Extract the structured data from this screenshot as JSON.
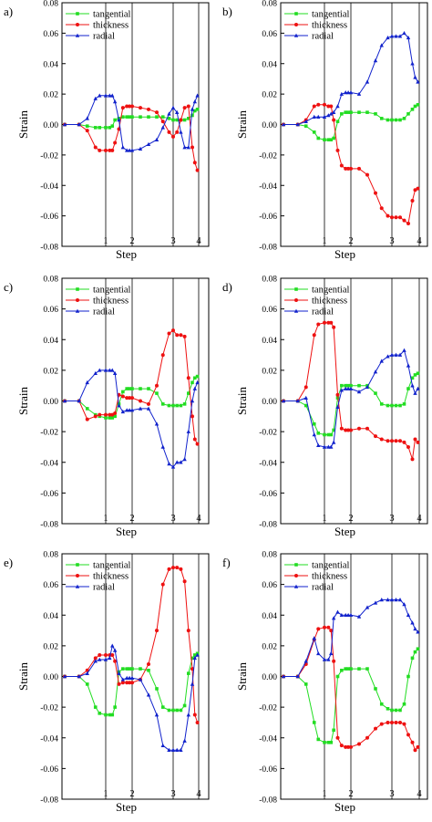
{
  "chart_data": [
    {
      "panel": "a)",
      "type": "line",
      "xlabel": "Step",
      "ylabel": "Strain",
      "ylim": [
        -0.08,
        0.08
      ],
      "yticks": [
        "0.08",
        "0.06",
        "0.04",
        "0.02",
        "0.00",
        "-0.02",
        "-0.04",
        "-0.06",
        "-0.08"
      ],
      "xticks": [
        "1",
        "2",
        "3",
        "4"
      ],
      "grid": "vertical lines at steps",
      "legend": "top-left",
      "x": [
        0,
        0.35,
        0.55,
        0.75,
        0.85,
        1,
        1.15,
        1.25,
        1.35,
        1.5,
        1.65,
        1.8,
        1.9,
        2,
        2.2,
        2.4,
        2.6,
        2.75,
        2.9,
        3,
        3.15,
        3.3,
        3.45,
        3.6,
        3.75,
        3.85,
        3.95
      ],
      "series": [
        {
          "name": "tangential",
          "color": "#22dd22",
          "marker": "square",
          "values": [
            0,
            0,
            -0.001,
            -0.002,
            -0.002,
            -0.002,
            -0.002,
            -0.001,
            0.003,
            0.004,
            0.005,
            0.005,
            0.005,
            0.005,
            0.005,
            0.005,
            0.005,
            0.005,
            0.004,
            0.003,
            0.003,
            0.003,
            0.003,
            0.004,
            0.006,
            0.009,
            0.01
          ]
        },
        {
          "name": "thickness",
          "color": "#ee1111",
          "marker": "circle",
          "values": [
            0,
            0,
            -0.004,
            -0.015,
            -0.017,
            -0.017,
            -0.017,
            -0.017,
            -0.012,
            -0.003,
            0.011,
            0.012,
            0.012,
            0.012,
            0.011,
            0.01,
            0.008,
            0.002,
            -0.005,
            -0.008,
            -0.005,
            0.003,
            0.011,
            0.012,
            -0.015,
            -0.025,
            -0.03
          ]
        },
        {
          "name": "radial",
          "color": "#1122cc",
          "marker": "triangle",
          "values": [
            0,
            0,
            0.004,
            0.017,
            0.019,
            0.019,
            0.019,
            0.019,
            0.015,
            0.003,
            -0.015,
            -0.017,
            -0.017,
            -0.017,
            -0.016,
            -0.013,
            -0.01,
            -0.002,
            0.007,
            0.011,
            0.008,
            -0.005,
            -0.015,
            -0.015,
            0.01,
            0.015,
            0.019
          ]
        }
      ]
    },
    {
      "panel": "b)",
      "type": "line",
      "xlabel": "Step",
      "ylabel": "Strain",
      "ylim": [
        -0.08,
        0.08
      ],
      "yticks": [
        "0.08",
        "0.06",
        "0.04",
        "0.02",
        "0.00",
        "-0.02",
        "-0.04",
        "-0.06",
        "-0.08"
      ],
      "xticks": [
        "1",
        "2",
        "3",
        "4"
      ],
      "grid": "vertical lines at steps",
      "legend": "top-left",
      "x": [
        0,
        0.35,
        0.55,
        0.75,
        0.85,
        1,
        1.15,
        1.25,
        1.35,
        1.5,
        1.65,
        1.8,
        1.9,
        2,
        2.2,
        2.4,
        2.6,
        2.75,
        2.9,
        3,
        3.15,
        3.3,
        3.45,
        3.6,
        3.75,
        3.85,
        3.95
      ],
      "series": [
        {
          "name": "tangential",
          "color": "#22dd22",
          "marker": "square",
          "values": [
            0,
            0,
            -0.001,
            -0.005,
            -0.009,
            -0.01,
            -0.01,
            -0.01,
            -0.009,
            0.002,
            0.007,
            0.008,
            0.008,
            0.008,
            0.008,
            0.008,
            0.007,
            0.004,
            0.003,
            0.003,
            0.003,
            0.003,
            0.004,
            0.007,
            0.01,
            0.012,
            0.013
          ]
        },
        {
          "name": "thickness",
          "color": "#ee1111",
          "marker": "circle",
          "values": [
            0,
            0,
            0.003,
            0.012,
            0.013,
            0.013,
            0.012,
            0.012,
            0.003,
            -0.017,
            -0.027,
            -0.029,
            -0.029,
            -0.029,
            -0.029,
            -0.033,
            -0.045,
            -0.055,
            -0.06,
            -0.061,
            -0.061,
            -0.061,
            -0.063,
            -0.065,
            -0.05,
            -0.043,
            -0.042
          ]
        },
        {
          "name": "radial",
          "color": "#1122cc",
          "marker": "triangle",
          "values": [
            0,
            0,
            0.002,
            0.005,
            0.005,
            0.005,
            0.006,
            0.007,
            0.008,
            0.012,
            0.02,
            0.021,
            0.021,
            0.021,
            0.02,
            0.028,
            0.042,
            0.052,
            0.057,
            0.058,
            0.058,
            0.058,
            0.06,
            0.057,
            0.04,
            0.031,
            0.028
          ]
        }
      ]
    },
    {
      "panel": "c)",
      "type": "line",
      "xlabel": "Step",
      "ylabel": "Strain",
      "ylim": [
        -0.08,
        0.08
      ],
      "yticks": [
        "0.08",
        "0.06",
        "0.04",
        "0.02",
        "0.00",
        "-0.02",
        "-0.04",
        "-0.06",
        "-0.08"
      ],
      "xticks": [
        "1",
        "2",
        "3",
        "4"
      ],
      "grid": "vertical lines at steps",
      "legend": "top-left",
      "x": [
        0,
        0.35,
        0.55,
        0.75,
        0.85,
        1,
        1.15,
        1.25,
        1.35,
        1.5,
        1.65,
        1.8,
        1.9,
        2,
        2.2,
        2.4,
        2.6,
        2.75,
        2.9,
        3,
        3.15,
        3.3,
        3.45,
        3.6,
        3.75,
        3.85,
        3.95
      ],
      "series": [
        {
          "name": "tangential",
          "color": "#22dd22",
          "marker": "square",
          "values": [
            0,
            0,
            -0.005,
            -0.009,
            -0.01,
            -0.011,
            -0.011,
            -0.011,
            -0.01,
            -0.002,
            0.006,
            0.008,
            0.008,
            0.008,
            0.008,
            0.008,
            0.005,
            -0.002,
            -0.003,
            -0.003,
            -0.003,
            -0.003,
            -0.002,
            0.005,
            0.012,
            0.015,
            0.016
          ]
        },
        {
          "name": "thickness",
          "color": "#ee1111",
          "marker": "circle",
          "values": [
            0,
            0,
            -0.012,
            -0.01,
            -0.009,
            -0.009,
            -0.009,
            -0.009,
            -0.008,
            0.004,
            0.003,
            0.002,
            0.002,
            0.002,
            0,
            -0.002,
            0.01,
            0.03,
            0.044,
            0.046,
            0.043,
            0.043,
            0.042,
            0.015,
            -0.01,
            -0.025,
            -0.028
          ]
        },
        {
          "name": "radial",
          "color": "#1122cc",
          "marker": "triangle",
          "values": [
            0,
            0,
            0.012,
            0.018,
            0.02,
            0.02,
            0.02,
            0.02,
            0.018,
            -0.003,
            -0.007,
            -0.006,
            -0.006,
            -0.006,
            -0.005,
            -0.005,
            -0.015,
            -0.03,
            -0.041,
            -0.043,
            -0.04,
            -0.04,
            -0.038,
            -0.02,
            0,
            0.008,
            0.012
          ]
        }
      ]
    },
    {
      "panel": "d)",
      "type": "line",
      "xlabel": "Step",
      "ylabel": "Strain",
      "ylim": [
        -0.08,
        0.08
      ],
      "yticks": [
        "0.08",
        "0.06",
        "0.04",
        "0.02",
        "0.00",
        "-0.02",
        "-0.04",
        "-0.06",
        "-0.08"
      ],
      "xticks": [
        "1",
        "2",
        "3",
        "4"
      ],
      "grid": "vertical lines at steps",
      "legend": "top-left",
      "x": [
        0,
        0.35,
        0.55,
        0.75,
        0.85,
        1,
        1.15,
        1.25,
        1.35,
        1.5,
        1.65,
        1.8,
        1.9,
        2,
        2.2,
        2.4,
        2.6,
        2.75,
        2.9,
        3,
        3.15,
        3.3,
        3.45,
        3.6,
        3.75,
        3.85,
        3.95
      ],
      "series": [
        {
          "name": "tangential",
          "color": "#22dd22",
          "marker": "square",
          "values": [
            0,
            0,
            -0.003,
            -0.015,
            -0.021,
            -0.022,
            -0.022,
            -0.022,
            -0.019,
            0.002,
            0.01,
            0.01,
            0.01,
            0.01,
            0.01,
            0.01,
            0.005,
            -0.002,
            -0.003,
            -0.003,
            -0.003,
            -0.003,
            -0.002,
            0.008,
            0.015,
            0.017,
            0.018
          ]
        },
        {
          "name": "thickness",
          "color": "#ee1111",
          "marker": "circle",
          "values": [
            0,
            0,
            0.009,
            0.043,
            0.05,
            0.051,
            0.051,
            0.051,
            0.048,
            0.004,
            -0.018,
            -0.019,
            -0.019,
            -0.019,
            -0.018,
            -0.018,
            -0.023,
            -0.025,
            -0.026,
            -0.026,
            -0.026,
            -0.026,
            -0.027,
            -0.03,
            -0.038,
            -0.025,
            -0.027
          ]
        },
        {
          "name": "radial",
          "color": "#1122cc",
          "marker": "triangle",
          "values": [
            0,
            0,
            0.002,
            -0.022,
            -0.029,
            -0.03,
            -0.03,
            -0.03,
            -0.027,
            -0.004,
            0.007,
            0.008,
            0.008,
            0.008,
            0.006,
            0.009,
            0.019,
            0.026,
            0.029,
            0.03,
            0.03,
            0.03,
            0.033,
            0.023,
            0.01,
            0.005,
            0.008
          ]
        }
      ]
    },
    {
      "panel": "e)",
      "type": "line",
      "xlabel": "Step",
      "ylabel": "Strain",
      "ylim": [
        -0.08,
        0.08
      ],
      "yticks": [
        "0.08",
        "0.06",
        "0.04",
        "0.02",
        "0.00",
        "-0.02",
        "-0.04",
        "-0.06",
        "-0.08"
      ],
      "xticks": [
        "1",
        "2",
        "3",
        "4"
      ],
      "grid": "vertical lines at steps",
      "legend": "top-left",
      "x": [
        0,
        0.35,
        0.55,
        0.75,
        0.85,
        1,
        1.15,
        1.25,
        1.35,
        1.5,
        1.65,
        1.8,
        1.9,
        2,
        2.2,
        2.4,
        2.6,
        2.75,
        2.9,
        3,
        3.15,
        3.3,
        3.45,
        3.6,
        3.75,
        3.85,
        3.95
      ],
      "series": [
        {
          "name": "tangential",
          "color": "#22dd22",
          "marker": "square",
          "values": [
            0,
            0,
            -0.005,
            -0.02,
            -0.024,
            -0.025,
            -0.025,
            -0.025,
            -0.02,
            0.003,
            0.005,
            0.005,
            0.005,
            0.005,
            0.005,
            0.004,
            -0.008,
            -0.02,
            -0.022,
            -0.022,
            -0.022,
            -0.022,
            -0.019,
            0.002,
            0.012,
            0.014,
            0.015
          ]
        },
        {
          "name": "thickness",
          "color": "#ee1111",
          "marker": "circle",
          "values": [
            0,
            0,
            0.004,
            0.012,
            0.014,
            0.014,
            0.014,
            0.014,
            0.01,
            -0.005,
            -0.004,
            -0.004,
            -0.004,
            -0.004,
            -0.002,
            0.008,
            0.03,
            0.06,
            0.07,
            0.071,
            0.071,
            0.07,
            0.062,
            0.03,
            0.005,
            -0.025,
            -0.03
          ]
        },
        {
          "name": "radial",
          "color": "#1122cc",
          "marker": "triangle",
          "values": [
            0,
            0,
            0.002,
            0.01,
            0.011,
            0.011,
            0.012,
            0.02,
            0.017,
            0.002,
            -0.002,
            -0.001,
            -0.001,
            -0.001,
            -0.002,
            -0.012,
            -0.025,
            -0.045,
            -0.048,
            -0.048,
            -0.048,
            -0.048,
            -0.042,
            -0.025,
            -0.005,
            0.012,
            0.014
          ]
        }
      ]
    },
    {
      "panel": "f)",
      "type": "line",
      "xlabel": "Step",
      "ylabel": "Strain",
      "ylim": [
        -0.08,
        0.08
      ],
      "yticks": [
        "0.08",
        "0.06",
        "0.04",
        "0.02",
        "0.00",
        "-0.02",
        "-0.04",
        "-0.06",
        "-0.08"
      ],
      "xticks": [
        "1",
        "2",
        "3",
        "4"
      ],
      "grid": "vertical lines at steps",
      "legend": "top-left",
      "x": [
        0,
        0.35,
        0.55,
        0.75,
        0.85,
        1,
        1.15,
        1.25,
        1.35,
        1.5,
        1.65,
        1.8,
        1.9,
        2,
        2.2,
        2.4,
        2.6,
        2.75,
        2.9,
        3,
        3.15,
        3.3,
        3.45,
        3.6,
        3.75,
        3.85,
        3.95
      ],
      "series": [
        {
          "name": "tangential",
          "color": "#22dd22",
          "marker": "square",
          "values": [
            0,
            0,
            -0.005,
            -0.03,
            -0.041,
            -0.043,
            -0.043,
            -0.043,
            -0.035,
            0,
            0.004,
            0.005,
            0.005,
            0.005,
            0.005,
            0.005,
            -0.008,
            -0.018,
            -0.021,
            -0.022,
            -0.022,
            -0.022,
            -0.018,
            0,
            0.012,
            0.016,
            0.018
          ]
        },
        {
          "name": "thickness",
          "color": "#ee1111",
          "marker": "circle",
          "values": [
            0,
            0,
            0.008,
            0.024,
            0.031,
            0.032,
            0.032,
            0.03,
            0.01,
            -0.04,
            -0.045,
            -0.046,
            -0.046,
            -0.046,
            -0.044,
            -0.04,
            -0.034,
            -0.031,
            -0.03,
            -0.03,
            -0.03,
            -0.03,
            -0.031,
            -0.038,
            -0.043,
            -0.048,
            -0.046
          ]
        },
        {
          "name": "radial",
          "color": "#1122cc",
          "marker": "triangle",
          "values": [
            0,
            0,
            0.01,
            0.025,
            0.015,
            0.011,
            0.011,
            0.015,
            0.038,
            0.042,
            0.04,
            0.04,
            0.04,
            0.04,
            0.039,
            0.045,
            0.048,
            0.05,
            0.05,
            0.05,
            0.05,
            0.05,
            0.047,
            0.04,
            0.035,
            0.031,
            0.029
          ]
        }
      ]
    }
  ]
}
